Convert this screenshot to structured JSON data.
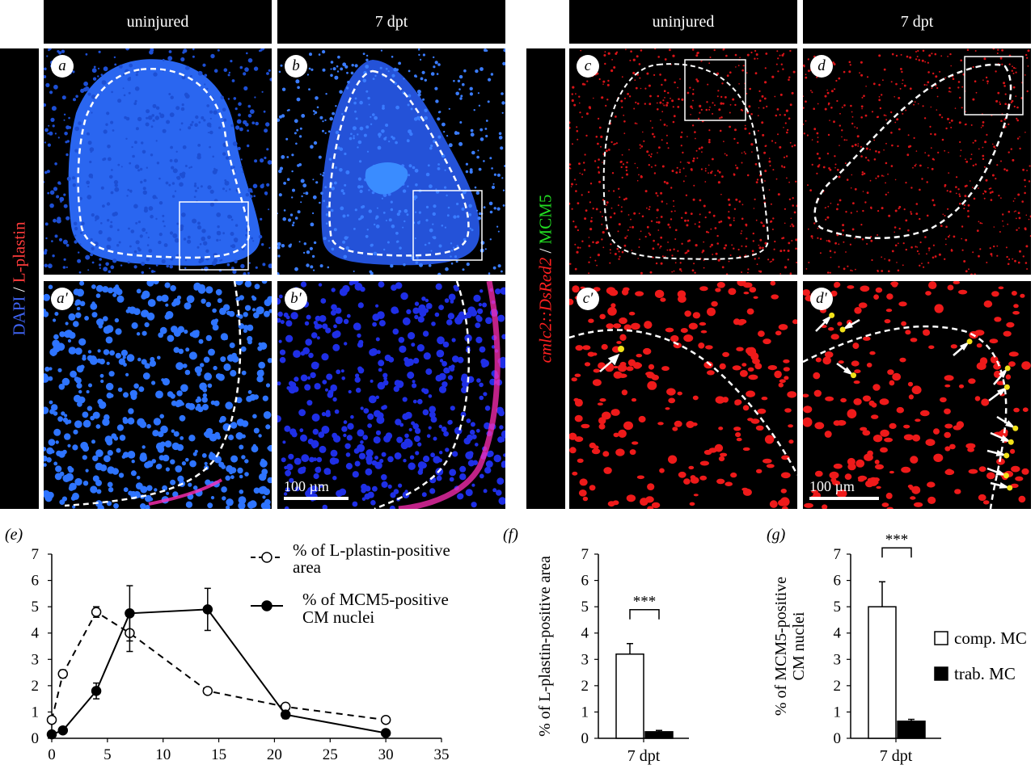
{
  "headers": {
    "a": "uninjured",
    "b": "7 dpt",
    "c": "uninjured",
    "d": "7 dpt"
  },
  "left_stain": {
    "dapi": "DAPI",
    "sep": " / ",
    "lplastin": "L-plastin"
  },
  "right_stain": {
    "cmlc": "cmlc2::DsRed2",
    "sep": " / ",
    "mcm5": "MCM5"
  },
  "panel_labels": {
    "a": "a",
    "b": "b",
    "c": "c",
    "d": "d",
    "a2": "a′",
    "b2": "b′",
    "c2": "c′",
    "d2": "d′",
    "e": "(e)",
    "f": "(f)",
    "g": "(g)"
  },
  "scale_bar": "100 µm",
  "colors": {
    "dapi": "#2c6cf5",
    "dapi_zoom": "#1a2bdc",
    "lplastin": "#ff2db4",
    "dsred": "#e8141c",
    "mcm5": "#1fd61f",
    "overlap": "#f2e21a"
  },
  "chart_data": [
    {
      "id": "e",
      "type": "line",
      "x": [
        0,
        1,
        4,
        7,
        14,
        21,
        30
      ],
      "series": [
        {
          "name": "% of L-plastin-positive area",
          "style": "dashed, open circles",
          "x": [
            0,
            1,
            4,
            7,
            14,
            21,
            30
          ],
          "values": [
            0.7,
            2.45,
            4.8,
            4.0,
            1.8,
            1.2,
            0.7
          ],
          "errors": [
            0.1,
            0.15,
            0.2,
            0.7,
            0.1,
            0.1,
            0.05
          ]
        },
        {
          "name": "% of MCM5-positive CM nuclei",
          "style": "solid, filled circles",
          "x": [
            0,
            1,
            4,
            7,
            14,
            21,
            30
          ],
          "values": [
            0.15,
            0.3,
            1.8,
            4.75,
            4.9,
            0.9,
            0.2
          ],
          "errors": [
            0.05,
            0.05,
            0.3,
            1.05,
            0.8,
            0.15,
            0.05
          ]
        }
      ],
      "xlim": [
        0,
        35
      ],
      "ylim": [
        0,
        7
      ],
      "xticks": [
        0,
        5,
        10,
        15,
        20,
        25,
        30,
        35
      ],
      "yticks": [
        0,
        1,
        2,
        3,
        4,
        5,
        6,
        7
      ],
      "legend_line1a": "% of L-plastin-positive",
      "legend_line1b": "area",
      "legend_line2a": "% of MCM5-positive",
      "legend_line2b": "CM nuclei",
      "legend": "top-right"
    },
    {
      "id": "f",
      "type": "bar",
      "categories": [
        "7 dpt"
      ],
      "series": [
        {
          "name": "comp. MC",
          "values": [
            3.2
          ],
          "errors": [
            0.4
          ]
        },
        {
          "name": "trab. MC",
          "values": [
            0.25
          ],
          "errors": [
            0.05
          ]
        }
      ],
      "ylabel": "% of L-plastin-positive area",
      "ylim": [
        0,
        7
      ],
      "yticks": [
        0,
        1,
        2,
        3,
        4,
        5,
        6,
        7
      ],
      "significance": "***"
    },
    {
      "id": "g",
      "type": "bar",
      "categories": [
        "7 dpt"
      ],
      "series": [
        {
          "name": "comp. MC",
          "values": [
            5.0
          ],
          "errors": [
            0.95
          ]
        },
        {
          "name": "trab. MC",
          "values": [
            0.65
          ],
          "errors": [
            0.07
          ]
        }
      ],
      "ylabel_line1": "% of MCM5-positive",
      "ylabel_line2": "CM nuclei",
      "ylim": [
        0,
        7
      ],
      "yticks": [
        0,
        1,
        2,
        3,
        4,
        5,
        6,
        7
      ],
      "significance": "***",
      "legend": "right"
    }
  ]
}
